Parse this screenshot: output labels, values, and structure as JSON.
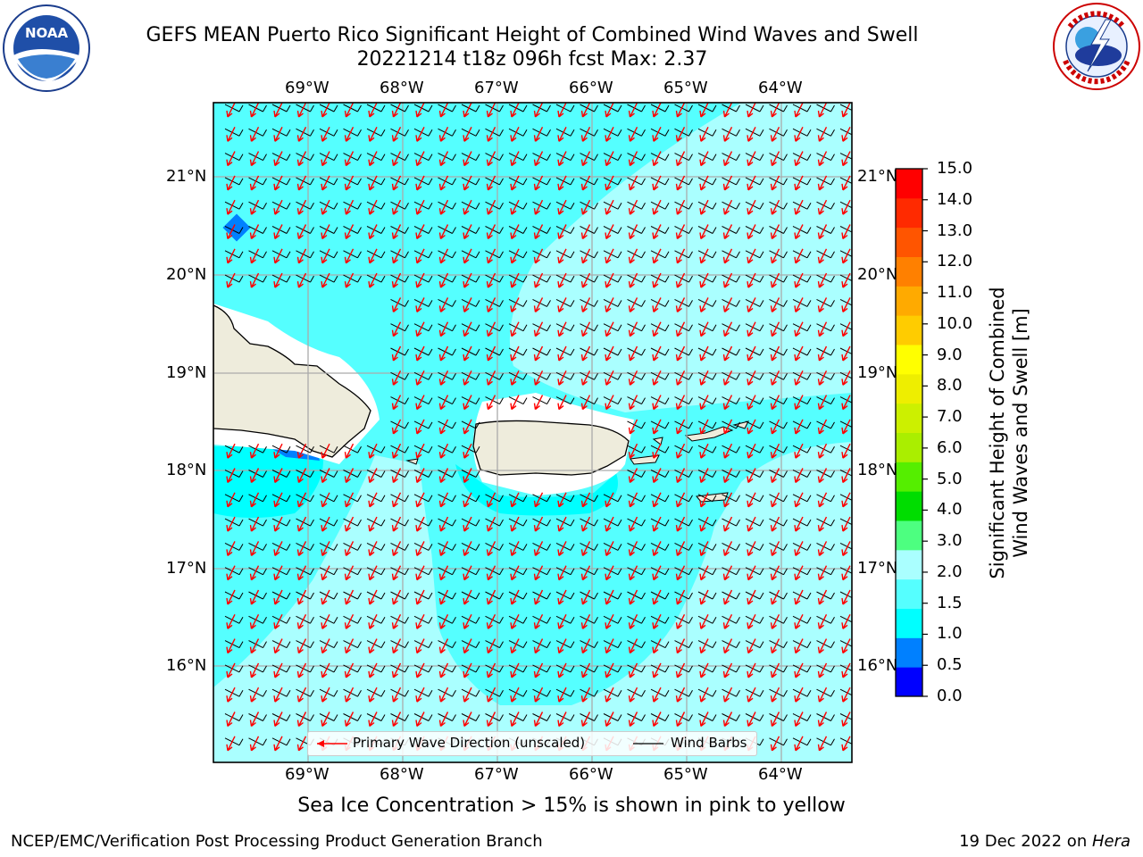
{
  "title": {
    "line1": "GEFS MEAN Puerto Rico Significant Height of Combined Wind Waves and Swell",
    "line2": "20221214 t18z 096h fcst   Max: 2.37"
  },
  "logos": {
    "left": {
      "icon": "noaa-logo",
      "text": "NOAA",
      "ring_text": "NATIONAL OCEANIC AND ATMOSPHERIC ADMINISTRATION · U.S. DEPARTMENT OF COMMERCE"
    },
    "right": {
      "icon": "nws-logo",
      "ring_text": "NATIONAL WEATHER SERVICE"
    }
  },
  "map": {
    "lon_labels": [
      "69°W",
      "68°W",
      "67°W",
      "66°W",
      "65°W",
      "64°W"
    ],
    "lat_labels": [
      "21°N",
      "20°N",
      "19°N",
      "18°N",
      "17°N",
      "16°N"
    ],
    "legend": {
      "wave_direction": "Primary Wave Direction (unscaled)",
      "wind_barbs": "Wind Barbs"
    }
  },
  "colorbar": {
    "title_line1": "Significant Height of Combined",
    "title_line2": "Wind Waves and Swell [m]",
    "ticks": [
      "15.0",
      "14.0",
      "13.0",
      "12.0",
      "11.0",
      "10.0",
      "9.0",
      "8.0",
      "7.0",
      "6.0",
      "5.0",
      "4.0",
      "3.0",
      "2.0",
      "1.5",
      "1.0",
      "0.5",
      "0.0"
    ],
    "colors": [
      "#0000ff",
      "#0080ff",
      "#00ffff",
      "#55ffff",
      "#aaffff",
      "#4dff80",
      "#00dd00",
      "#55ee00",
      "#aaee00",
      "#ccf000",
      "#eeee00",
      "#ffff00",
      "#ffcc00",
      "#ffaa00",
      "#ff8000",
      "#ff5500",
      "#ff2a00",
      "#ff0000"
    ]
  },
  "caption": "Sea Ice Concentration > 15% is shown in pink to yellow",
  "footer": {
    "left": "NCEP/EMC/Verification Post Processing Product Generation Branch",
    "right_prefix": "19 Dec 2022 on ",
    "right_host": "Hera"
  }
}
